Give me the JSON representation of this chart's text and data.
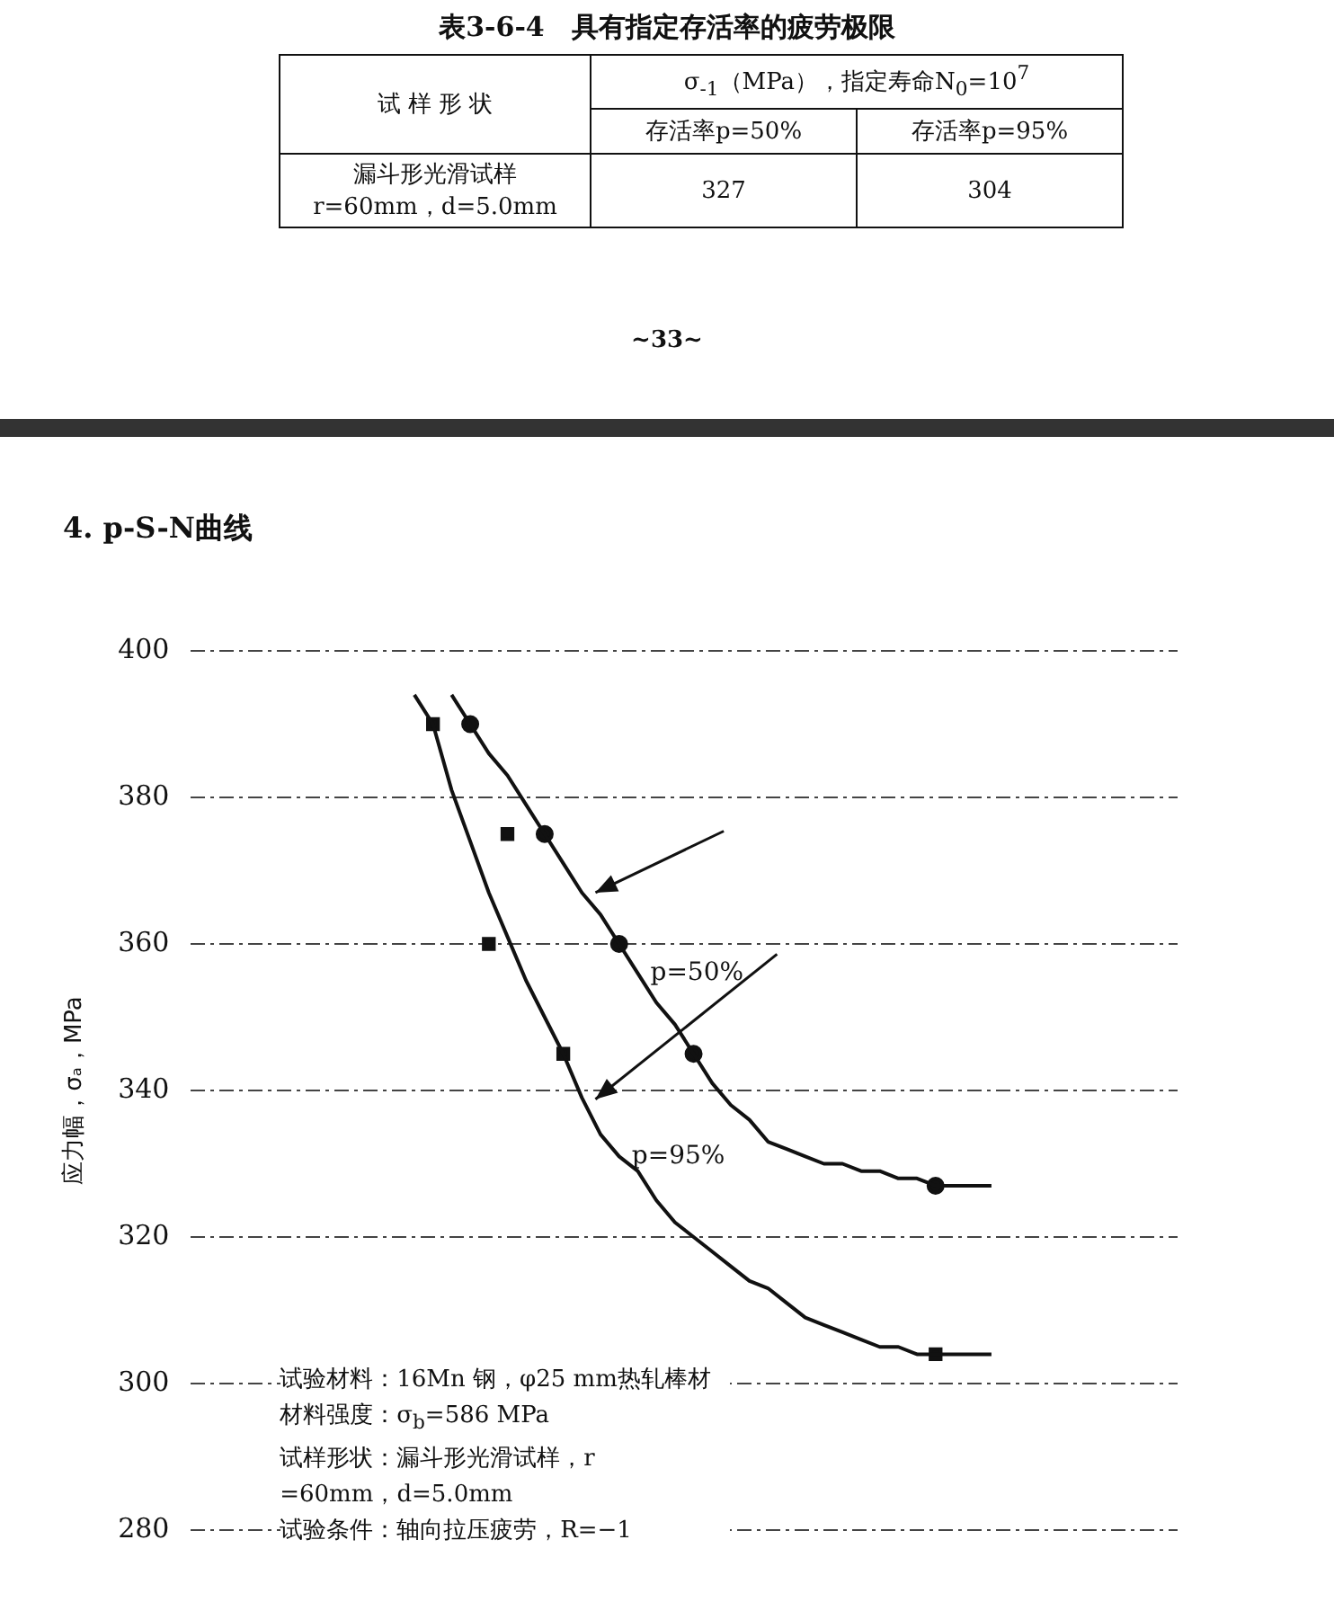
{
  "chart_data": {
    "type": "line",
    "title": "4. p-S-N曲线",
    "ylabel": "应力幅，σₐ，MPa",
    "annotations": [
      "表3-6-4　具有指定存活率的疲劳极限",
      "试 样 形 状",
      "σ$_{-1}$（MPa），指定寿命N$_{0}$=10$^{7}$",
      "存活率p=50%",
      "存活率p=95%",
      "漏斗形光滑试样\nr=60mm，d=5.0mm",
      "327",
      "304",
      "~33~",
      "试验材料：16Mn 钢，φ25 mm热轧棒材",
      "材料强度：σ$_{b}$=586 MPa",
      "试样形状：漏斗形光滑试样，r\n=60mm，d=5.0mm",
      "试验条件：轴向拉压疲劳，R=−1"
    ],
    "categories": [
      null,
      null,
      null,
      null,
      null,
      null,
      null,
      null,
      null,
      null,
      null,
      null,
      null,
      null,
      null,
      null,
      null,
      null,
      null,
      null,
      null,
      null,
      null,
      null,
      null,
      null,
      null,
      null,
      null,
      null,
      null,
      null,
      null,
      null,
      null,
      null,
      null,
      null,
      null,
      null,
      null,
      null,
      null,
      null,
      null,
      null,
      null,
      null,
      null,
      null,
      null,
      null,
      null,
      null
    ],
    "ylim": [
      280,
      400
    ],
    "yticks": [
      280,
      300,
      320,
      340,
      360,
      380,
      400
    ],
    "grid": "y",
    "legend": false,
    "series": [
      {
        "name": "p=50%",
        "type": "line",
        "marker": "none",
        "color": "#111111",
        "values": [
          null,
          null,
          null,
          null,
          null,
          null,
          null,
          null,
          null,
          null,
          null,
          null,
          null,
          null,
          394,
          390,
          386,
          383,
          379,
          375,
          371,
          367,
          364,
          360,
          356,
          352,
          349,
          345,
          341,
          338,
          336,
          333,
          332,
          331,
          330,
          330,
          329,
          329,
          328,
          328,
          327,
          327,
          327,
          327,
          null,
          null,
          null,
          null,
          null,
          null,
          null,
          null,
          null,
          null
        ]
      },
      {
        "name": "p=95%",
        "type": "line",
        "marker": "none",
        "color": "#111111",
        "values": [
          null,
          null,
          null,
          null,
          null,
          null,
          null,
          null,
          null,
          null,
          null,
          null,
          394,
          390,
          381,
          374,
          367,
          361,
          355,
          350,
          345,
          339,
          334,
          331,
          329,
          325,
          322,
          320,
          318,
          316,
          314,
          313,
          311,
          309,
          308,
          307,
          306,
          305,
          305,
          304,
          304,
          304,
          304,
          304,
          null,
          null,
          null,
          null,
          null,
          null,
          null,
          null,
          null,
          null
        ]
      },
      {
        "type": "scatter",
        "marker": "circle",
        "color": "#111111",
        "values": [
          null,
          null,
          null,
          null,
          null,
          null,
          null,
          null,
          null,
          null,
          null,
          null,
          null,
          null,
          null,
          390,
          null,
          null,
          null,
          375,
          null,
          null,
          null,
          360,
          null,
          null,
          null,
          345,
          null,
          null,
          null,
          null,
          null,
          null,
          null,
          null,
          null,
          null,
          null,
          null,
          327,
          null,
          null,
          null,
          null,
          null,
          null,
          null,
          null,
          null,
          null,
          null,
          null,
          null
        ]
      },
      {
        "type": "scatter",
        "marker": "square",
        "color": "#111111",
        "values": [
          null,
          null,
          null,
          null,
          null,
          null,
          null,
          null,
          null,
          null,
          null,
          null,
          null,
          390,
          null,
          null,
          360,
          375,
          null,
          null,
          345,
          null,
          null,
          null,
          null,
          null,
          null,
          null,
          null,
          null,
          null,
          null,
          null,
          null,
          null,
          null,
          null,
          null,
          null,
          null,
          304,
          null,
          null,
          null,
          null,
          null,
          null,
          null,
          null,
          null,
          null,
          null,
          null,
          null
        ]
      }
    ]
  }
}
